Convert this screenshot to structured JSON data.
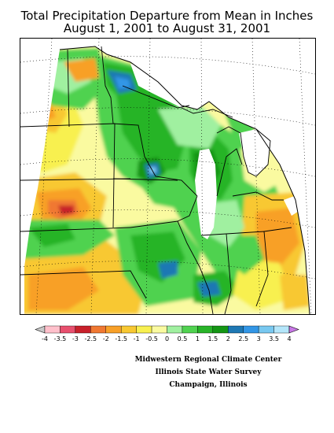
{
  "title": {
    "line1": "Total Precipitation Departure from Mean in Inches",
    "line2": "August 1, 2001 to August 31, 2001"
  },
  "legend": {
    "unit": "inches",
    "labels": [
      "-4",
      "-3.5",
      "-3",
      "-2.5",
      "-2",
      "-1.5",
      "-1",
      "-0.5",
      "0",
      "0.5",
      "1",
      "1.5",
      "2",
      "2.5",
      "3",
      "3.5",
      "4"
    ],
    "colors": [
      "#c8c8c8",
      "#ffc0cb",
      "#e8506e",
      "#c8202a",
      "#f07832",
      "#f8a028",
      "#f8c832",
      "#f8f050",
      "#fafaa0",
      "#a0f0a0",
      "#50d250",
      "#28b428",
      "#149614",
      "#1e78b4",
      "#3296e6",
      "#78c8f0",
      "#b4e6fa",
      "#c878e6"
    ]
  },
  "credit": {
    "line1": "Midwestern Regional Climate Center",
    "line2": "Illinois State Water Survey",
    "line3": "Champaign, Illinois"
  }
}
